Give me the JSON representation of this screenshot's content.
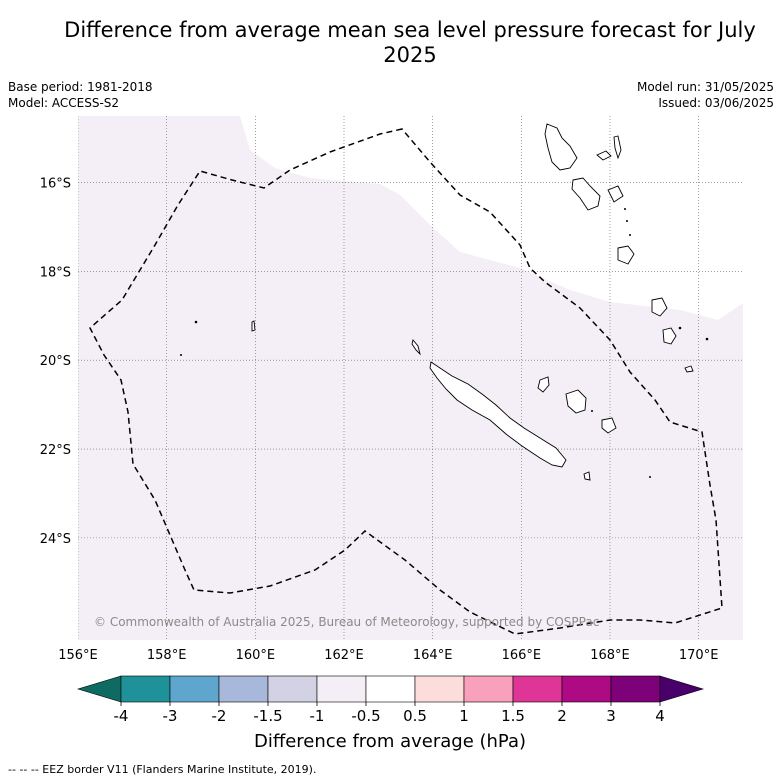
{
  "header": {
    "title": "Difference from average mean sea level pressure forecast for July 2025",
    "base_period": "Base period: 1981-2018",
    "model": "Model: ACCESS-S2",
    "model_run": "Model run: 31/05/2025",
    "issued": "Issued: 03/06/2025"
  },
  "map": {
    "lon_labels": [
      "156°E",
      "158°E",
      "160°E",
      "162°E",
      "164°E",
      "166°E",
      "168°E",
      "170°E"
    ],
    "lat_labels": [
      "16°S",
      "18°S",
      "20°S",
      "22°S",
      "24°S"
    ],
    "lon_range": [
      156,
      171
    ],
    "lat_range": [
      -14.5,
      -26.3
    ],
    "anomaly_fill_color": "#f4eef6",
    "copyright": "© Commonwealth of Australia 2025, Bureau of Meteorology, supported by COSPPac"
  },
  "colorbar": {
    "label": "Difference from average (hPa)",
    "tick_labels": [
      "-4",
      "-3",
      "-2",
      "-1.5",
      "-1",
      "-0.5",
      "0.5",
      "1",
      "1.5",
      "2",
      "3",
      "4"
    ],
    "colors": [
      "#0e6b62",
      "#1f9199",
      "#5fa6cf",
      "#a8b8da",
      "#d2d2e4",
      "#f4eef6",
      "#ffffff",
      "#fddcdc",
      "#f8a0bc",
      "#de3597",
      "#ad0a84",
      "#7d0279",
      "#4a006a"
    ]
  },
  "footer": {
    "legend_text": "-- -- -- EEZ border V11 (Flanders Marine Institute, 2019)."
  }
}
